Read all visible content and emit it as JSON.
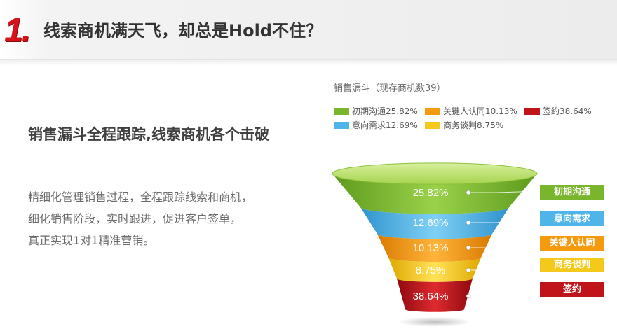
{
  "header": {
    "step_number": "1.",
    "title": "线索商机满天飞，却总是Hold不住？"
  },
  "content": {
    "subtitle": "销售漏斗全程跟踪,线索商机各个击破",
    "description_lines": [
      "精细化管理销售过程，全程跟踪线索和商机，",
      "细化销售阶段，实时跟进，促进客户签单，",
      "真正实现1对1精准营销。"
    ]
  },
  "chart": {
    "title": "销售漏斗（现存商机数39）",
    "legend": [
      {
        "label": "初期沟通25.82%",
        "color": "#79b62e"
      },
      {
        "label": "关键人认同10.13%",
        "color": "#f39a0f"
      },
      {
        "label": "签约38.64%",
        "color": "#c0141a"
      },
      {
        "label": "意向需求12.69%",
        "color": "#4fb4e8"
      },
      {
        "label": "商务谈判8.75%",
        "color": "#f5c91c"
      }
    ],
    "stages": [
      {
        "name": "初期沟通",
        "percent_label": "25.82%",
        "color": "#79b62e"
      },
      {
        "name": "意向需求",
        "percent_label": "12.69%",
        "color": "#4fb4e8"
      },
      {
        "name": "关键人认同",
        "percent_label": "10.13%",
        "color": "#f39a0f"
      },
      {
        "name": "商务谈判",
        "percent_label": "8.75%",
        "color": "#f5c91c"
      },
      {
        "name": "签约",
        "percent_label": "38.64%",
        "color": "#c0141a"
      }
    ]
  },
  "chart_data": {
    "type": "funnel",
    "title": "销售漏斗（现存商机数39）",
    "categories": [
      "初期沟通",
      "意向需求",
      "关键人认同",
      "商务谈判",
      "签约"
    ],
    "values": [
      25.82,
      12.69,
      10.13,
      8.75,
      38.64
    ],
    "unit": "%",
    "total_opportunities": 39,
    "legend_position": "top"
  }
}
